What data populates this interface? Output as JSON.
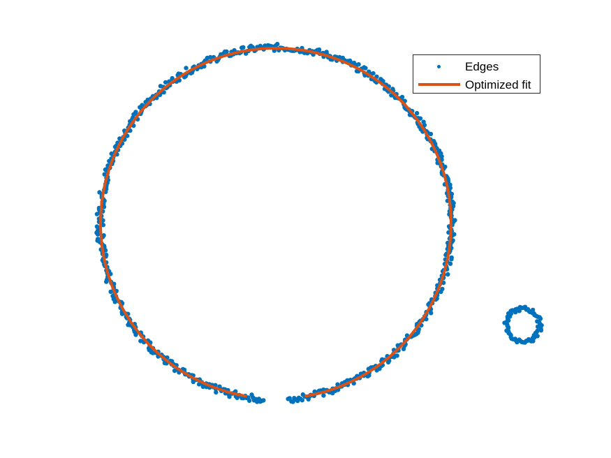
{
  "chart_data": {
    "type": "scatter",
    "title": "",
    "xlabel": "",
    "ylabel": "",
    "axes_visible": false,
    "grid": false,
    "legend_position": "top-right",
    "legend": [
      {
        "label": "Edges",
        "marker": "dot",
        "color": "#0072BD"
      },
      {
        "label": "Optimized fit",
        "marker": "line",
        "color": "#D95319"
      }
    ],
    "series": [
      {
        "name": "Edges",
        "kind": "points",
        "color": "#0072BD",
        "shapes": [
          {
            "shape": "circle",
            "center": [
              395,
              320
            ],
            "radius": 252,
            "gap_deg": [
              86,
              94
            ]
          },
          {
            "shape": "circle",
            "center": [
              749,
              466
            ],
            "radius": 24
          }
        ]
      },
      {
        "name": "Optimized fit",
        "kind": "line",
        "color": "#D95319",
        "shapes": [
          {
            "shape": "arc",
            "center": [
              395,
              320
            ],
            "radius": 251,
            "from_deg": 99.5,
            "to_deg": 440.5
          }
        ]
      }
    ]
  }
}
